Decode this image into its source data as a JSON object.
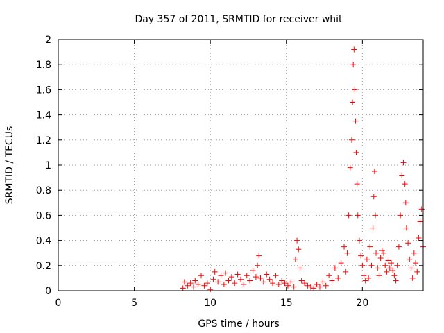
{
  "chart_data": {
    "type": "scatter",
    "title": "Day 357 of 2011, SRMTID for receiver whit",
    "xlabel": "GPS time / hours",
    "ylabel": "SRMTID / TECUs",
    "xlim": [
      0,
      24
    ],
    "ylim": [
      0,
      2
    ],
    "xticks": [
      0,
      5,
      10,
      15,
      20
    ],
    "xtick_labels": [
      "0",
      "5",
      "10",
      "15",
      "20"
    ],
    "yticks": [
      0,
      0.2,
      0.4,
      0.6,
      0.8,
      1,
      1.2,
      1.4,
      1.6,
      1.8,
      2
    ],
    "ytick_labels": [
      "0",
      "0.2",
      "0.4",
      "0.6",
      "0.8",
      "1",
      "1.2",
      "1.4",
      "1.6",
      "1.8",
      "2"
    ],
    "grid": true,
    "marker": "+",
    "marker_color": "#ff0000",
    "series": [
      {
        "name": "SRMTID",
        "x": [
          8.2,
          8.3,
          8.5,
          8.7,
          8.9,
          9.0,
          9.2,
          9.4,
          9.6,
          9.8,
          10.0,
          10.2,
          10.3,
          10.5,
          10.7,
          10.9,
          11.0,
          11.2,
          11.4,
          11.6,
          11.8,
          12.0,
          12.2,
          12.4,
          12.6,
          12.8,
          13.0,
          13.1,
          13.2,
          13.3,
          13.5,
          13.7,
          13.9,
          14.1,
          14.3,
          14.5,
          14.7,
          14.9,
          15.1,
          15.3,
          15.5,
          15.6,
          15.7,
          15.8,
          15.9,
          16.0,
          16.2,
          16.4,
          16.6,
          16.8,
          17.0,
          17.2,
          17.4,
          17.6,
          17.8,
          18.0,
          18.2,
          18.4,
          18.6,
          18.8,
          18.9,
          19.0,
          19.1,
          19.2,
          19.3,
          19.35,
          19.4,
          19.45,
          19.5,
          19.55,
          19.6,
          19.65,
          19.7,
          19.8,
          19.9,
          20.0,
          20.1,
          20.2,
          20.3,
          20.4,
          20.5,
          20.6,
          20.7,
          20.75,
          20.8,
          20.85,
          20.9,
          21.0,
          21.1,
          21.2,
          21.3,
          21.4,
          21.5,
          21.6,
          21.7,
          21.8,
          21.9,
          22.0,
          22.1,
          22.2,
          22.3,
          22.4,
          22.5,
          22.6,
          22.7,
          22.8,
          22.85,
          22.9,
          23.0,
          23.1,
          23.2,
          23.3,
          23.4,
          23.5,
          23.6,
          23.7,
          23.8,
          23.9,
          24.0
        ],
        "y": [
          0.02,
          0.07,
          0.04,
          0.06,
          0.03,
          0.08,
          0.05,
          0.12,
          0.04,
          0.06,
          0.01,
          0.09,
          0.15,
          0.07,
          0.12,
          0.05,
          0.14,
          0.08,
          0.11,
          0.06,
          0.13,
          0.09,
          0.05,
          0.12,
          0.08,
          0.16,
          0.11,
          0.2,
          0.28,
          0.1,
          0.07,
          0.13,
          0.09,
          0.06,
          0.12,
          0.05,
          0.08,
          0.06,
          0.04,
          0.07,
          0.03,
          0.25,
          0.4,
          0.33,
          0.18,
          0.08,
          0.06,
          0.04,
          0.03,
          0.02,
          0.05,
          0.03,
          0.07,
          0.04,
          0.12,
          0.08,
          0.18,
          0.1,
          0.22,
          0.35,
          0.15,
          0.3,
          0.6,
          0.98,
          1.2,
          1.5,
          1.8,
          1.92,
          1.6,
          1.35,
          1.1,
          0.85,
          0.6,
          0.4,
          0.28,
          0.2,
          0.12,
          0.08,
          0.25,
          0.1,
          0.35,
          0.2,
          0.5,
          0.75,
          0.95,
          0.6,
          0.3,
          0.18,
          0.12,
          0.26,
          0.32,
          0.3,
          0.2,
          0.15,
          0.24,
          0.18,
          0.22,
          0.16,
          0.12,
          0.08,
          0.2,
          0.35,
          0.6,
          0.92,
          1.02,
          0.85,
          0.7,
          0.5,
          0.38,
          0.25,
          0.18,
          0.1,
          0.3,
          0.22,
          0.15,
          0.42,
          0.55,
          0.65,
          0.35
        ]
      }
    ]
  }
}
